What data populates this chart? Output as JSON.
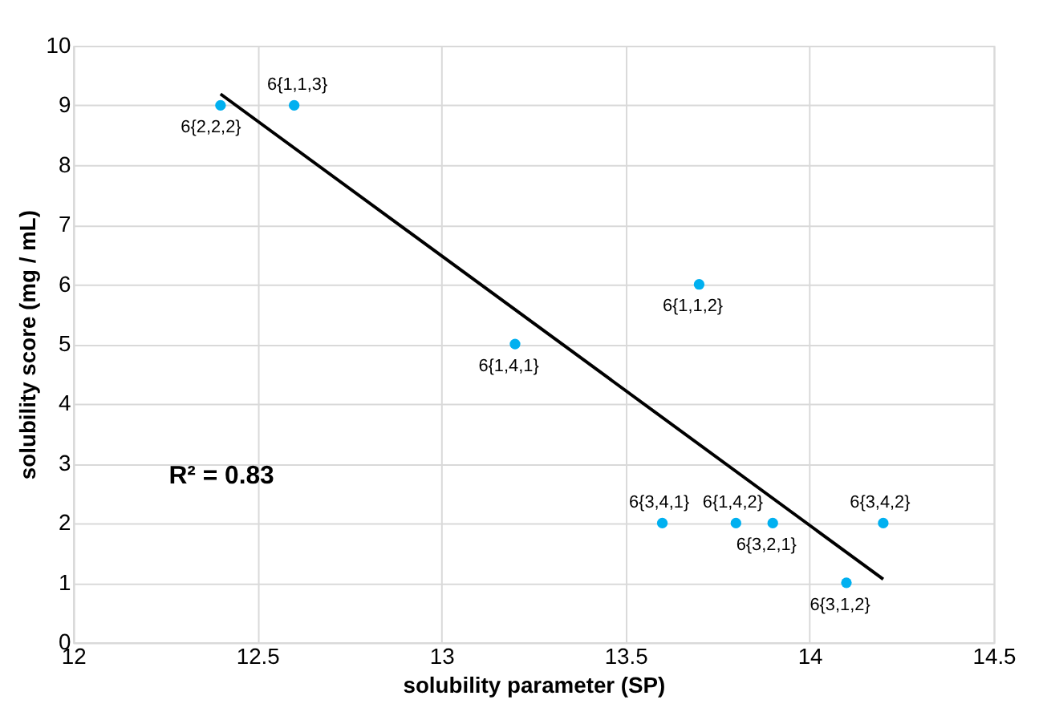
{
  "chart_data": {
    "type": "scatter",
    "xlabel": "solubility parameter (SP)",
    "ylabel": "solubility score (mg / mL)",
    "x": [
      12.4,
      12.6,
      13.2,
      13.7,
      13.6,
      13.8,
      13.9,
      14.1,
      14.2
    ],
    "series": [
      {
        "color": "#00b0f0",
        "marker": "circle",
        "values": [
          9,
          9,
          5,
          6,
          2,
          2,
          2,
          1,
          2
        ]
      },
      {
        "type": "line",
        "color": "#000000",
        "x": [
          12.4,
          14.2
        ],
        "values": [
          9.19,
          1.06
        ]
      }
    ],
    "xlim": [
      12,
      14.5
    ],
    "xticks": [
      12,
      12.5,
      13,
      13.5,
      14,
      14.5
    ],
    "ylim": [
      0,
      10
    ],
    "yticks": [
      0,
      1,
      2,
      3,
      4,
      5,
      6,
      7,
      8,
      9,
      10
    ],
    "grid": true,
    "annotations": [
      {
        "text": "6{2,2,2}",
        "x": 12.4,
        "y": 9
      },
      {
        "text": "6{1,1,3}",
        "x": 12.6,
        "y": 9
      },
      {
        "text": "6{1,4,1}",
        "x": 13.2,
        "y": 5
      },
      {
        "text": "6{1,1,2}",
        "x": 13.7,
        "y": 6
      },
      {
        "text": "6{3,4,1}",
        "x": 13.6,
        "y": 2
      },
      {
        "text": "6{1,4,2}",
        "x": 13.8,
        "y": 2
      },
      {
        "text": "6{3,2,1}",
        "x": 13.9,
        "y": 2
      },
      {
        "text": "6{3,1,2}",
        "x": 14.1,
        "y": 1
      },
      {
        "text": "6{3,4,2}",
        "x": 14.2,
        "y": 2
      },
      "R² = 0.83"
    ]
  }
}
